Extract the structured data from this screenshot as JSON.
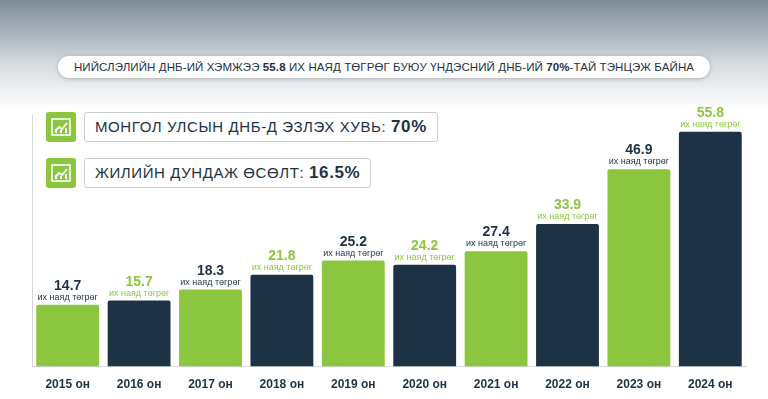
{
  "chart_data": {
    "type": "bar",
    "title": "НИЙСЛЭЛИЙН ДНБ-ИЙ ХЭМЖЭЭ 55.8 ИХ НАЯД ТӨГРӨГ БУЮУ ҮНДЭСНИЙ ДНБ-ИЙ 70%-ТАЙ ТЭНЦЭЖ БАЙНА",
    "annotations": [
      "МОНГОЛ УЛСЫН ДНБ-Д ЭЗЛЭХ ХУВЬ: 70%",
      "ЖИЛИЙН ДУНДАЖ ӨСӨЛТ: 16.5%"
    ],
    "categories": [
      "2015 он",
      "2016 он",
      "2017 он",
      "2018 он",
      "2019 он",
      "2020 он",
      "2021 он",
      "2022 он",
      "2023 он",
      "2024 он"
    ],
    "values": [
      14.7,
      15.7,
      18.3,
      21.8,
      25.2,
      24.2,
      27.4,
      33.9,
      46.9,
      55.8
    ],
    "value_labels": [
      "14.7 их наяд төгрөг",
      "15.7 их наяд төгрөг",
      "18.3 их наяд төгрөг",
      "21.8 их наяд төгрөг",
      "25.2 их наяд төгрөг",
      "24.2 их наяд төгрөг",
      "27.4 их наяд төгрөг",
      "33.9 их наяд төгрөг",
      "46.9 их наяд төгрөг",
      "55.8 их наяд төгрөг"
    ],
    "colors": [
      "#8cc63f",
      "#1e3246",
      "#8cc63f",
      "#1e3246",
      "#8cc63f",
      "#1e3246",
      "#8cc63f",
      "#1e3246",
      "#8cc63f",
      "#1e3246"
    ],
    "ylim": [
      0,
      60
    ],
    "grid": false,
    "data_labels": true,
    "tick_labels": "x"
  }
}
